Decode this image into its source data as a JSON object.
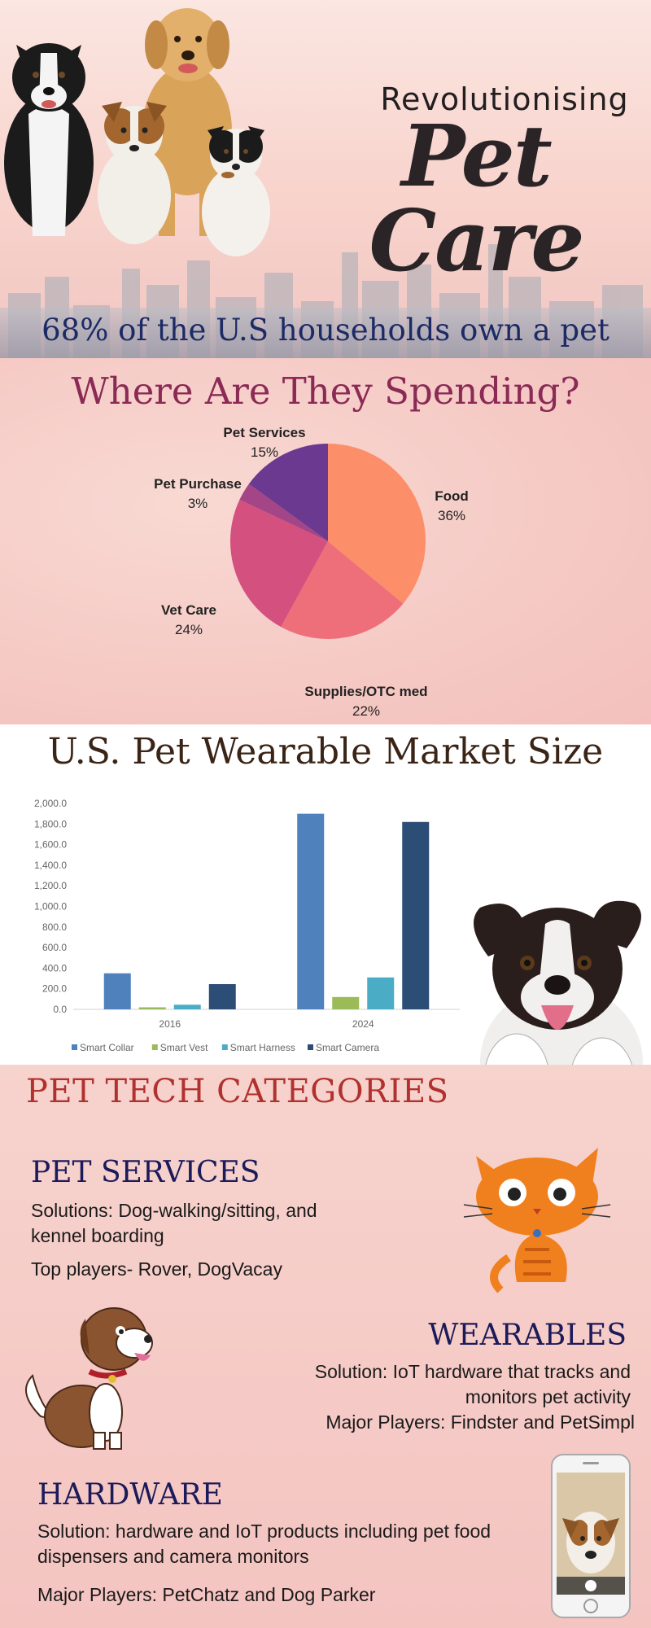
{
  "hero": {
    "subtitle": "Revolutionising",
    "title": "Pet Care",
    "stat": "68% of the U.S households own a pet"
  },
  "spending": {
    "title": "Where Are They Spending?"
  },
  "market": {
    "title": "U.S. Pet Wearable Market Size"
  },
  "chart_data": [
    {
      "type": "pie",
      "title": "Where Are They Spending?",
      "categories": [
        "Food",
        "Supplies/OTC med",
        "Vet Care",
        "Pet Purchase",
        "Pet Services"
      ],
      "values": [
        36,
        22,
        24,
        3,
        15
      ],
      "value_labels": [
        "36%",
        "22%",
        "24%",
        "3%",
        "15%"
      ],
      "colors": [
        "#fc8f6a",
        "#ee6f7a",
        "#d4507f",
        "#a34586",
        "#6b3a90"
      ]
    },
    {
      "type": "bar",
      "title": "U.S. Pet Wearable Market Size",
      "categories": [
        "2016",
        "2024"
      ],
      "series": [
        {
          "name": "Smart Collar",
          "values": [
            350,
            1900
          ],
          "color": "#4f81bd"
        },
        {
          "name": "Smart Vest",
          "values": [
            20,
            120
          ],
          "color": "#9bbb59"
        },
        {
          "name": "Smart Harness",
          "values": [
            45,
            310
          ],
          "color": "#4bacc6"
        },
        {
          "name": "Smart Camera",
          "values": [
            245,
            1820
          ],
          "color": "#2c4d75"
        }
      ],
      "ylim": [
        0,
        2000
      ],
      "yticks": [
        "0.0",
        "200.0",
        "400.0",
        "600.0",
        "800.0",
        "1,000.0",
        "1,200.0",
        "1,400.0",
        "1,600.0",
        "1,800.0",
        "2,000.0"
      ],
      "legend": "bottom",
      "grid": false
    }
  ],
  "categories": {
    "title": "PET TECH CATEGORIES",
    "services": {
      "heading": "PET SERVICES",
      "solution": "Solutions: Dog-walking/sitting, and kennel boarding",
      "players": "Top players- Rover, DogVacay"
    },
    "wearables": {
      "heading": "WEARABLES",
      "solution": "Solution: IoT hardware that tracks and monitors pet activity",
      "players": "Major Players:  Findster and PetSimpl"
    },
    "hardware": {
      "heading": "HARDWARE",
      "solution": "Solution: hardware and IoT products including pet food dispensers and camera monitors",
      "players": "Major Players: PetChatz and Dog Parker"
    }
  },
  "icons": {
    "hero_dogs": "dogs-group-photo",
    "skyline": "city-skyline",
    "puppy": "puppy-photo",
    "cat": "cartoon-cat",
    "dog": "cartoon-dog",
    "phone": "smartphone-pet-camera"
  }
}
